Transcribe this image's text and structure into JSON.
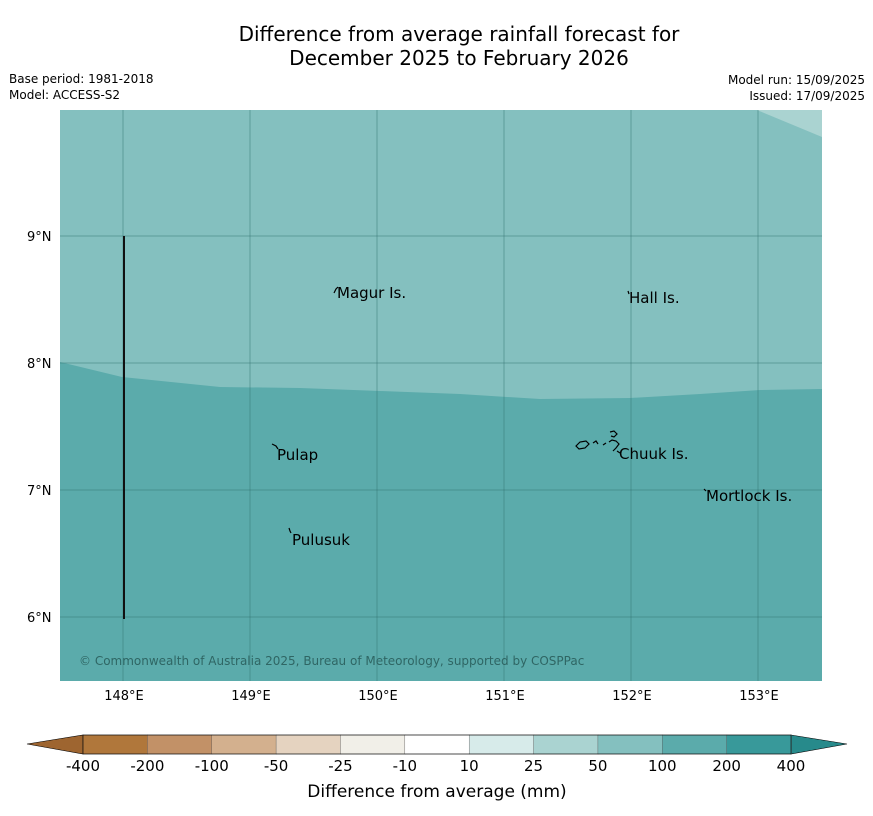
{
  "title_line1": "Difference from average rainfall forecast for",
  "title_line2": "December 2025 to February 2026",
  "meta_left": {
    "base_period": "Base period: 1981-2018",
    "model": "Model: ACCESS-S2"
  },
  "meta_right": {
    "model_run": "Model run: 15/09/2025",
    "issued": "Issued: 17/09/2025"
  },
  "map": {
    "x_ticks": [
      "148°E",
      "149°E",
      "150°E",
      "151°E",
      "152°E",
      "153°E"
    ],
    "y_ticks": [
      "9°N",
      "8°N",
      "7°N",
      "6°N"
    ],
    "places": [
      "Magur Is.",
      "Hall Is.",
      "Pulap",
      "Chuuk Is.",
      "Mortlock Is.",
      "Pulusuk"
    ],
    "copyright": "© Commonwealth of Australia 2025, Bureau of Meteorology, supported by COSPPac",
    "region_colors": {
      "band_50_100": "#84c0bf",
      "band_100_200": "#5babab",
      "band_25_50": "#aad3d1"
    }
  },
  "colorbar": {
    "boundaries": [
      "-400",
      "-200",
      "-100",
      "-50",
      "-25",
      "-10",
      "10",
      "25",
      "50",
      "100",
      "200",
      "400"
    ],
    "colors": [
      "#b0773b",
      "#c29167",
      "#d3b08e",
      "#e5d3c0",
      "#f1efe8",
      "#ffffff",
      "#d7ebea",
      "#aad3d1",
      "#84c0bf",
      "#5babab",
      "#38999a"
    ],
    "extend_low_color": "#9e6530",
    "extend_high_color": "#278a8b",
    "title": "Difference from average (mm)"
  }
}
